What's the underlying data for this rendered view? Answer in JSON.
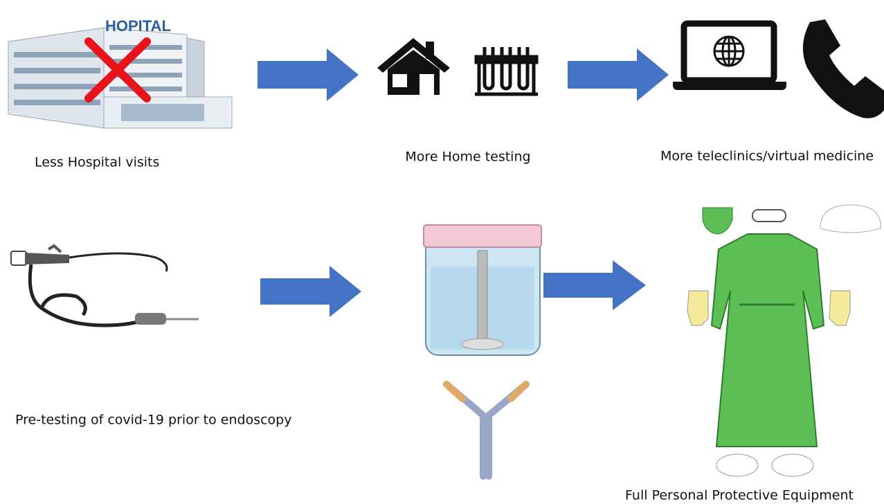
{
  "hospital_sign": "HOPITAL",
  "steps": [
    {
      "label": "Less Hospital visits"
    },
    {
      "label": "More Home testing"
    },
    {
      "label": "More teleclinics/virtual medicine"
    },
    {
      "label": "Pre-testing of covid-19 prior to endoscopy"
    },
    {
      "label": "Full Personal Protective Equipment"
    }
  ]
}
